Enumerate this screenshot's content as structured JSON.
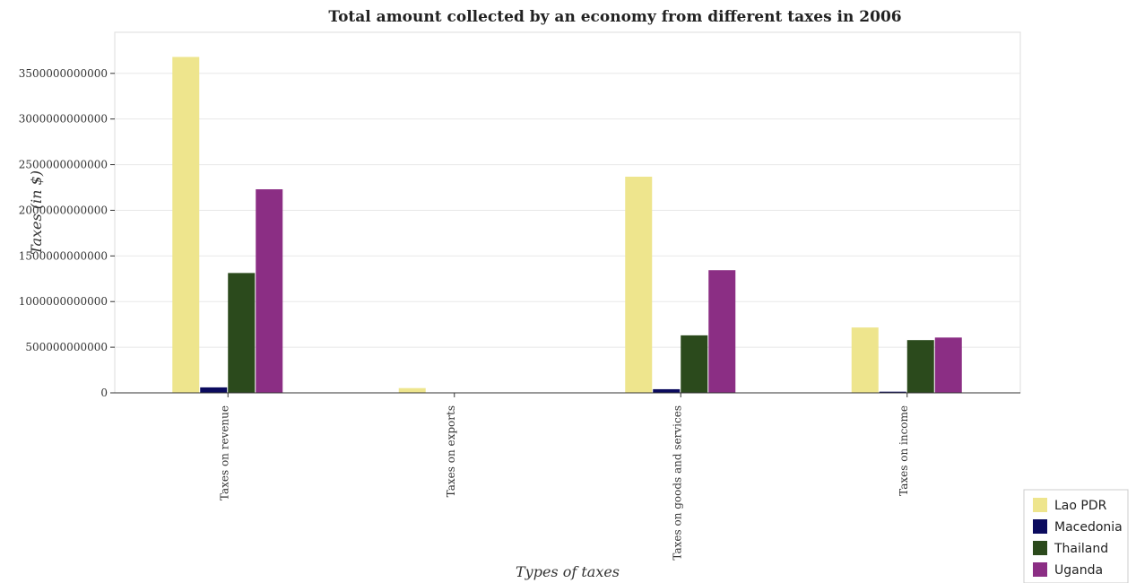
{
  "chart_data": {
    "type": "bar",
    "title": "Total amount collected by an economy from different taxes in 2006",
    "xlabel": "Types of taxes",
    "ylabel": "Taxes (in $)",
    "categories": [
      "Taxes on revenue",
      "Taxes on exports",
      "Taxes on goods and services",
      "Taxes on income"
    ],
    "series": [
      {
        "name": "Lao PDR",
        "color": "#eee58d",
        "values": [
          3680000000000,
          52000000000,
          2368000000000,
          716000000000
        ]
      },
      {
        "name": "Macedonia",
        "color": "#0b0b5e",
        "values": [
          60000000000,
          100000000,
          40000000000,
          13000000000
        ]
      },
      {
        "name": "Thailand",
        "color": "#2b4a1c",
        "values": [
          1313000000000,
          1000000000,
          630000000000,
          578000000000
        ]
      },
      {
        "name": "Uganda",
        "color": "#8b2e84",
        "values": [
          2230000000000,
          500000000,
          1344000000000,
          606000000000
        ]
      }
    ],
    "ylim": [
      0,
      3950000000000
    ],
    "yticks": [
      0,
      500000000000,
      1000000000000,
      1500000000000,
      2000000000000,
      2500000000000,
      3000000000000,
      3500000000000
    ],
    "ytick_labels": [
      "0",
      "500000000000",
      "1000000000000",
      "1500000000000",
      "2000000000000",
      "2500000000000",
      "3000000000000",
      "3500000000000"
    ],
    "grid": true,
    "legend_position": "bottom-right"
  }
}
